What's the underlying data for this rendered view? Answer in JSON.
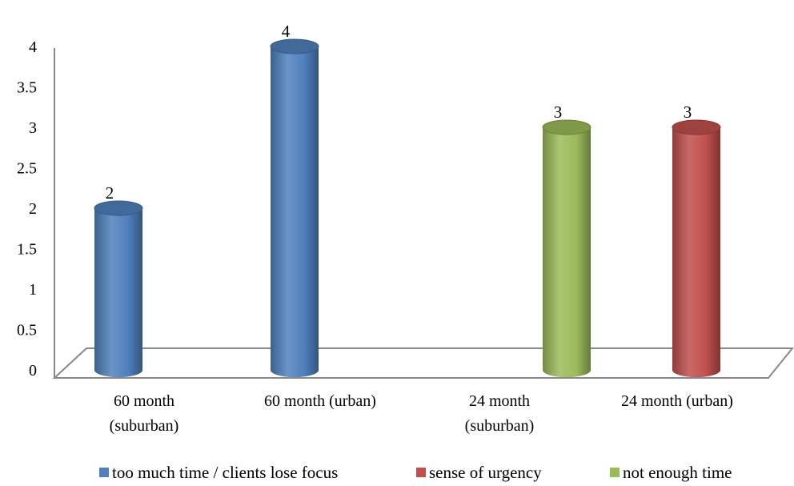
{
  "chart_data": {
    "type": "bar",
    "categories": [
      [
        "60 month",
        "(suburban)"
      ],
      [
        "60 month (urban)"
      ],
      [
        "24 month",
        "(suburban)"
      ],
      [
        "24 month (urban)"
      ]
    ],
    "series": [
      {
        "name": "too much time / clients lose focus",
        "color": "#4f81bd",
        "values": [
          2,
          4,
          null,
          null
        ]
      },
      {
        "name": "sense of urgency",
        "color": "#c0504d",
        "values": [
          null,
          null,
          null,
          3
        ]
      },
      {
        "name": "not enough time",
        "color": "#9bbb59",
        "values": [
          null,
          null,
          3,
          null
        ]
      }
    ],
    "data_labels": [
      "2",
      "4",
      "3",
      "3"
    ],
    "y_ticks": [
      "0",
      "0.5",
      "1",
      "1.5",
      "2",
      "2.5",
      "3",
      "3.5",
      "4"
    ],
    "ylim": [
      0,
      4
    ],
    "grid": false,
    "legend_position": "bottom",
    "style": "3d-cylinder"
  }
}
